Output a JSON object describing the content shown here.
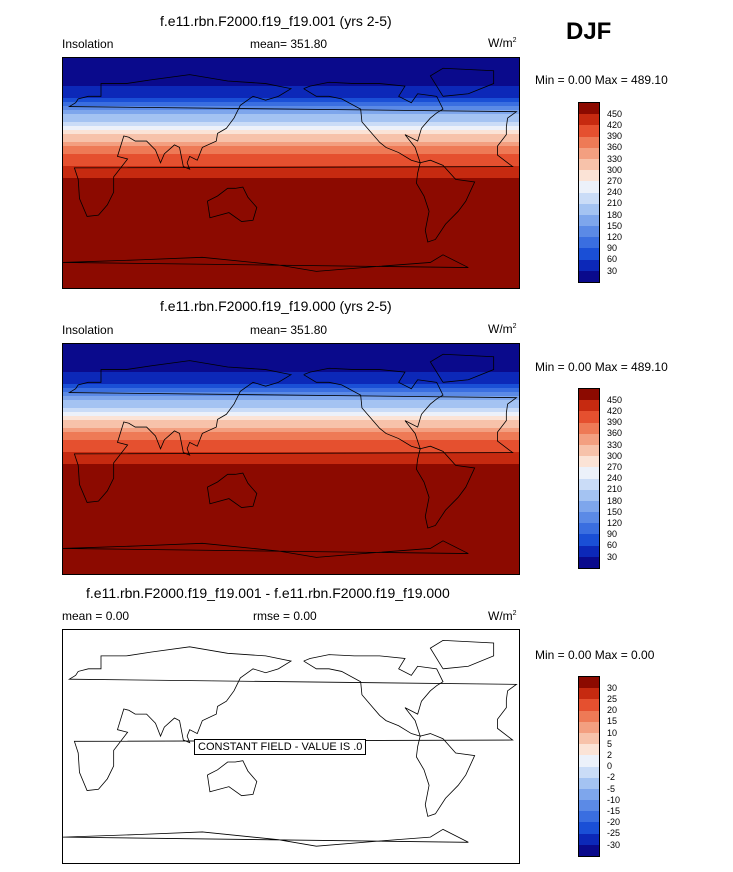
{
  "season": "DJF",
  "panels": [
    {
      "title": "f.e11.rbn.F2000.f19_f19.001 (yrs 2-5)",
      "left_label": "Insolation",
      "mean_text": "mean= 351.80",
      "units": "W/m",
      "units_sup": "2",
      "minmax": "Min =   0.00 Max = 489.10"
    },
    {
      "title": "f.e11.rbn.F2000.f19_f19.000 (yrs 2-5)",
      "left_label": "Insolation",
      "mean_text": "mean= 351.80",
      "units": "W/m",
      "units_sup": "2",
      "minmax": "Min =   0.00 Max = 489.10"
    },
    {
      "title": "f.e11.rbn.F2000.f19_f19.001 - f.e11.rbn.F2000.f19_f19.000",
      "left_label": "mean =   0.00",
      "mean_text": "rmse =   0.00",
      "units": "W/m",
      "units_sup": "2",
      "minmax": "Min =   0.00 Max =   0.00",
      "constant_note": "CONSTANT FIELD - VALUE IS .0"
    }
  ],
  "chart_data": [
    {
      "type": "heatmap",
      "title": "f.e11.rbn.F2000.f19_f19.001 (yrs 2-5)",
      "variable": "Insolation",
      "units": "W/m^2",
      "mean": 351.8,
      "min": 0.0,
      "max": 489.1,
      "levels": [
        30,
        60,
        90,
        120,
        150,
        180,
        210,
        240,
        270,
        300,
        330,
        360,
        390,
        420,
        450
      ],
      "colors": [
        "#0a0a8c",
        "#0c28b8",
        "#1a4fd6",
        "#3a6ee0",
        "#5b8ae6",
        "#7ea6ec",
        "#a4c3f2",
        "#cadcf7",
        "#ecf1fa",
        "#fbe3d6",
        "#f7c2aa",
        "#f39f80",
        "#ee7a56",
        "#e5502f",
        "#c62a10",
        "#8c0a00"
      ],
      "latitude_profile": [
        {
          "lat": 90,
          "value": 0
        },
        {
          "lat": 75,
          "value": 0
        },
        {
          "lat": 60,
          "value": 60
        },
        {
          "lat": 45,
          "value": 180
        },
        {
          "lat": 30,
          "value": 300
        },
        {
          "lat": 15,
          "value": 390
        },
        {
          "lat": 0,
          "value": 440
        },
        {
          "lat": -15,
          "value": 470
        },
        {
          "lat": -30,
          "value": 480
        },
        {
          "lat": -45,
          "value": 480
        },
        {
          "lat": -60,
          "value": 470
        },
        {
          "lat": -75,
          "value": 480
        },
        {
          "lat": -90,
          "value": 489
        }
      ]
    },
    {
      "type": "heatmap",
      "title": "f.e11.rbn.F2000.f19_f19.000 (yrs 2-5)",
      "variable": "Insolation",
      "units": "W/m^2",
      "mean": 351.8,
      "min": 0.0,
      "max": 489.1,
      "levels": [
        30,
        60,
        90,
        120,
        150,
        180,
        210,
        240,
        270,
        300,
        330,
        360,
        390,
        420,
        450
      ],
      "colors": [
        "#0a0a8c",
        "#0c28b8",
        "#1a4fd6",
        "#3a6ee0",
        "#5b8ae6",
        "#7ea6ec",
        "#a4c3f2",
        "#cadcf7",
        "#ecf1fa",
        "#fbe3d6",
        "#f7c2aa",
        "#f39f80",
        "#ee7a56",
        "#e5502f",
        "#c62a10",
        "#8c0a00"
      ],
      "latitude_profile": [
        {
          "lat": 90,
          "value": 0
        },
        {
          "lat": 75,
          "value": 0
        },
        {
          "lat": 60,
          "value": 60
        },
        {
          "lat": 45,
          "value": 180
        },
        {
          "lat": 30,
          "value": 300
        },
        {
          "lat": 15,
          "value": 390
        },
        {
          "lat": 0,
          "value": 440
        },
        {
          "lat": -15,
          "value": 470
        },
        {
          "lat": -30,
          "value": 480
        },
        {
          "lat": -45,
          "value": 480
        },
        {
          "lat": -60,
          "value": 470
        },
        {
          "lat": -75,
          "value": 480
        },
        {
          "lat": -90,
          "value": 489
        }
      ]
    },
    {
      "type": "heatmap",
      "title": "f.e11.rbn.F2000.f19_f19.001 - f.e11.rbn.F2000.f19_f19.000",
      "units": "W/m^2",
      "mean": 0.0,
      "rmse": 0.0,
      "min": 0.0,
      "max": 0.0,
      "levels": [
        -30,
        -25,
        -20,
        -15,
        -10,
        -5,
        -2,
        0,
        2,
        5,
        10,
        15,
        20,
        25,
        30
      ],
      "colors": [
        "#0a0a8c",
        "#0c28b8",
        "#1a4fd6",
        "#3a6ee0",
        "#5b8ae6",
        "#7ea6ec",
        "#a4c3f2",
        "#cadcf7",
        "#ecf1fa",
        "#fbe3d6",
        "#f7c2aa",
        "#f39f80",
        "#ee7a56",
        "#e5502f",
        "#c62a10",
        "#8c0a00"
      ],
      "constant_value": 0.0
    }
  ]
}
